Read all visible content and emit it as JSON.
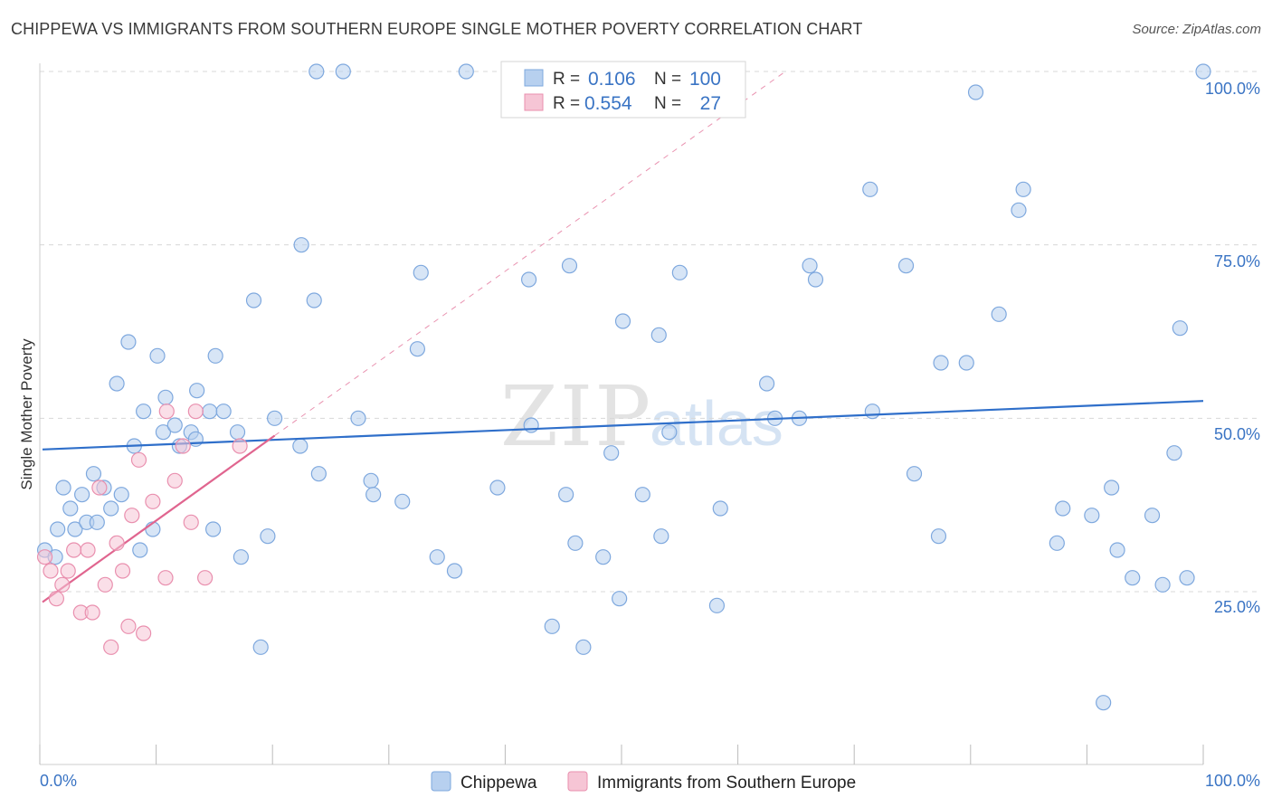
{
  "title": "CHIPPEWA VS IMMIGRANTS FROM SOUTHERN EUROPE SINGLE MOTHER POVERTY CORRELATION CHART",
  "source": "Source: ZipAtlas.com",
  "watermark": {
    "zip": "ZIP",
    "atlas": "atlas"
  },
  "colors": {
    "blue_fill": "#b7d0ef",
    "blue_stroke": "#7ea8de",
    "blue_line": "#2f6fca",
    "pink_fill": "#f6c5d5",
    "pink_stroke": "#e98fae",
    "pink_line": "#e0658f",
    "tick_text": "#3a74c4",
    "grid": "#d8d8d8"
  },
  "legend_top": {
    "rows": [
      {
        "r_label": "R =",
        "r_value": "0.106",
        "n_label": "N =",
        "n_value": "100"
      },
      {
        "r_label": "R =",
        "r_value": "0.554",
        "n_label": "N =",
        "n_value": "27"
      }
    ]
  },
  "legend_bottom": [
    "Chippewa",
    "Immigrants from Southern Europe"
  ],
  "chart_data": {
    "type": "scatter",
    "title": "CHIPPEWA VS IMMIGRANTS FROM SOUTHERN EUROPE SINGLE MOTHER POVERTY CORRELATION CHART",
    "xlabel": "",
    "ylabel": "Single Mother Poverty",
    "xlim": [
      0,
      100
    ],
    "ylim": [
      0,
      103
    ],
    "x_tick_labels": [
      "0.0%",
      "100.0%"
    ],
    "y_tick_labels": [
      "25.0%",
      "50.0%",
      "75.0%",
      "100.0%"
    ],
    "y_ticks": [
      25,
      50,
      75,
      100
    ],
    "grid": true,
    "series": [
      {
        "name": "Chippewa",
        "R": 0.106,
        "N": 100,
        "trend": {
          "x1": 0,
          "y1": 45.5,
          "x2": 100,
          "y2": 52.5
        },
        "points": [
          [
            0.2,
            31
          ],
          [
            1.3,
            34
          ],
          [
            1.8,
            40
          ],
          [
            2.4,
            37
          ],
          [
            2.8,
            34
          ],
          [
            3.4,
            39
          ],
          [
            3.8,
            35
          ],
          [
            4.4,
            42
          ],
          [
            4.7,
            35
          ],
          [
            5.3,
            40
          ],
          [
            5.9,
            37
          ],
          [
            6.4,
            55
          ],
          [
            6.8,
            39
          ],
          [
            7.4,
            61
          ],
          [
            7.9,
            46
          ],
          [
            8.4,
            31
          ],
          [
            8.7,
            51
          ],
          [
            9.5,
            34
          ],
          [
            9.9,
            59
          ],
          [
            10.4,
            48
          ],
          [
            10.6,
            53
          ],
          [
            11.4,
            49
          ],
          [
            11.8,
            46
          ],
          [
            12.8,
            48
          ],
          [
            13.2,
            47
          ],
          [
            13.3,
            54
          ],
          [
            14.4,
            51
          ],
          [
            14.7,
            34
          ],
          [
            14.9,
            59
          ],
          [
            15.6,
            51
          ],
          [
            16.8,
            48
          ],
          [
            17.1,
            30
          ],
          [
            18.2,
            67
          ],
          [
            18.8,
            17
          ],
          [
            19.4,
            33
          ],
          [
            20.0,
            50
          ],
          [
            22.2,
            46
          ],
          [
            22.3,
            75
          ],
          [
            23.4,
            67
          ],
          [
            23.8,
            42
          ],
          [
            23.6,
            100
          ],
          [
            25.9,
            100
          ],
          [
            27.2,
            50
          ],
          [
            28.3,
            41
          ],
          [
            28.5,
            39
          ],
          [
            31.0,
            38
          ],
          [
            32.3,
            60
          ],
          [
            32.6,
            71
          ],
          [
            34.0,
            30
          ],
          [
            35.5,
            28
          ],
          [
            36.5,
            100
          ],
          [
            39.2,
            40
          ],
          [
            42.1,
            49
          ],
          [
            41.9,
            70
          ],
          [
            43.9,
            20
          ],
          [
            45.1,
            39
          ],
          [
            45.4,
            72
          ],
          [
            45.9,
            32
          ],
          [
            46.6,
            17
          ],
          [
            48.3,
            30
          ],
          [
            49.0,
            45
          ],
          [
            49.7,
            24
          ],
          [
            50.0,
            64
          ],
          [
            51.7,
            39
          ],
          [
            53.1,
            62
          ],
          [
            53.3,
            33
          ],
          [
            54.0,
            48
          ],
          [
            54.9,
            71
          ],
          [
            58.1,
            23
          ],
          [
            58.4,
            37
          ],
          [
            62.4,
            55
          ],
          [
            63.1,
            50
          ],
          [
            65.2,
            50
          ],
          [
            66.1,
            72
          ],
          [
            66.6,
            70
          ],
          [
            71.5,
            51
          ],
          [
            71.3,
            83
          ],
          [
            74.4,
            72
          ],
          [
            75.1,
            42
          ],
          [
            77.2,
            33
          ],
          [
            77.4,
            58
          ],
          [
            79.6,
            58
          ],
          [
            80.4,
            97
          ],
          [
            82.4,
            65
          ],
          [
            84.1,
            80
          ],
          [
            84.5,
            83
          ],
          [
            87.4,
            32
          ],
          [
            87.9,
            37
          ],
          [
            90.4,
            36
          ],
          [
            91.4,
            9
          ],
          [
            92.1,
            40
          ],
          [
            92.6,
            31
          ],
          [
            93.9,
            27
          ],
          [
            95.6,
            36
          ],
          [
            96.5,
            26
          ],
          [
            97.5,
            45
          ],
          [
            98.0,
            63
          ],
          [
            98.6,
            27
          ],
          [
            100.0,
            100
          ],
          [
            1.1,
            30
          ]
        ]
      },
      {
        "name": "Immigrants from Southern Europe",
        "R": 0.554,
        "N": 27,
        "trend": {
          "x1": 0,
          "y1": 23.5,
          "x2": 20,
          "y2": 47.5
        },
        "trend_extension": {
          "x1": 20,
          "y1": 47.5,
          "x2": 64,
          "y2": 100
        },
        "points": [
          [
            0.2,
            30
          ],
          [
            0.7,
            28
          ],
          [
            1.2,
            24
          ],
          [
            1.7,
            26
          ],
          [
            2.2,
            28
          ],
          [
            2.7,
            31
          ],
          [
            3.3,
            22
          ],
          [
            3.9,
            31
          ],
          [
            4.3,
            22
          ],
          [
            4.9,
            40
          ],
          [
            5.4,
            26
          ],
          [
            5.9,
            17
          ],
          [
            6.4,
            32
          ],
          [
            6.9,
            28
          ],
          [
            7.4,
            20
          ],
          [
            7.7,
            36
          ],
          [
            8.3,
            44
          ],
          [
            8.7,
            19
          ],
          [
            9.5,
            38
          ],
          [
            10.7,
            51
          ],
          [
            10.6,
            27
          ],
          [
            11.4,
            41
          ],
          [
            12.1,
            46
          ],
          [
            12.8,
            35
          ],
          [
            13.2,
            51
          ],
          [
            14.0,
            27
          ],
          [
            17.0,
            46
          ]
        ]
      }
    ]
  }
}
